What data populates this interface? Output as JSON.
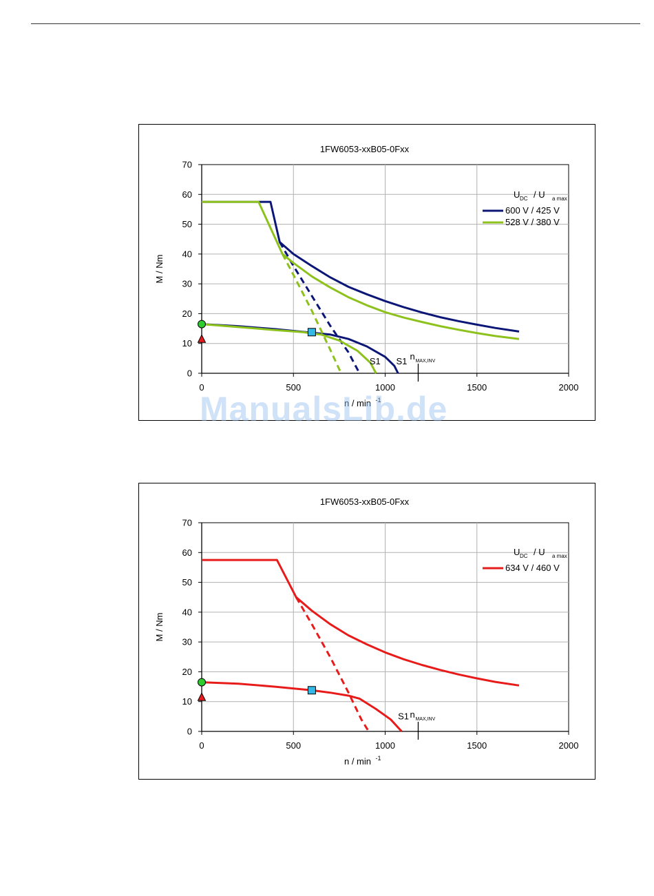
{
  "watermark": "ManualsLib.de",
  "colors": {
    "navy": "#0b1677",
    "lime": "#8dc11c",
    "red": "#e81b1b",
    "grid": "#b0b0b0",
    "marker_circle": "#2ecc2e",
    "marker_square": "#35b7e6",
    "marker_triangle": "#e81b1b"
  },
  "chart_data": [
    {
      "type": "line",
      "title": "1FW6053-xxB05-0Fxx",
      "xlabel": "n / min-1",
      "ylabel": "M / Nm",
      "xlim": [
        0,
        2000
      ],
      "ylim": [
        0,
        70
      ],
      "xticks": [
        "0",
        "500",
        "1000",
        "1500",
        "2000"
      ],
      "yticks": [
        "0",
        "10",
        "20",
        "30",
        "40",
        "50",
        "60",
        "70"
      ],
      "grid": true,
      "legend_title_main": "U",
      "legend_title_sub1": "DC",
      "legend_title_sep": "/  U",
      "legend_title_sub2": "a max",
      "legend_position": "top-right",
      "annotation_nmax_main": "n",
      "annotation_nmax_sub": "MAX,INV",
      "annotation_nmax_x": 1180,
      "markers": {
        "circle": [
          0,
          16.5
        ],
        "triangle": [
          0,
          11.5
        ],
        "square": [
          600,
          13.8
        ]
      },
      "series": [
        {
          "name": "600 V / 425 V",
          "color_key": "navy",
          "s1_label": "S1",
          "peak": [
            [
              0,
              57.5
            ],
            [
              375,
              57.5
            ],
            [
              425,
              44
            ],
            [
              500,
              40
            ],
            [
              600,
              36
            ],
            [
              700,
              32.2
            ],
            [
              800,
              29
            ],
            [
              900,
              26.5
            ],
            [
              1000,
              24.2
            ],
            [
              1100,
              22.2
            ],
            [
              1200,
              20.4
            ],
            [
              1300,
              18.8
            ],
            [
              1400,
              17.5
            ],
            [
              1500,
              16.3
            ],
            [
              1600,
              15.2
            ],
            [
              1730,
              14
            ]
          ],
          "peak_dashed": [
            [
              425,
              44
            ],
            [
              500,
              36
            ],
            [
              600,
              26
            ],
            [
              700,
              16
            ],
            [
              800,
              7
            ],
            [
              860,
              0
            ]
          ],
          "s1": [
            [
              0,
              16.5
            ],
            [
              200,
              15.8
            ],
            [
              400,
              14.8
            ],
            [
              600,
              13.6
            ],
            [
              700,
              13
            ],
            [
              800,
              11.5
            ],
            [
              900,
              9
            ],
            [
              1000,
              5.5
            ],
            [
              1050,
              2.5
            ],
            [
              1070,
              0
            ]
          ]
        },
        {
          "name": "528 V / 380 V",
          "color_key": "lime",
          "s1_label": "S1",
          "peak": [
            [
              0,
              57.5
            ],
            [
              310,
              57.5
            ],
            [
              440,
              40
            ],
            [
              500,
              37
            ],
            [
              600,
              32.5
            ],
            [
              700,
              28.8
            ],
            [
              800,
              25.5
            ],
            [
              900,
              22.8
            ],
            [
              1000,
              20.5
            ],
            [
              1100,
              18.7
            ],
            [
              1200,
              17.2
            ],
            [
              1300,
              15.8
            ],
            [
              1400,
              14.6
            ],
            [
              1500,
              13.5
            ],
            [
              1600,
              12.5
            ],
            [
              1730,
              11.5
            ]
          ],
          "peak_dashed": [
            [
              440,
              40
            ],
            [
              500,
              33
            ],
            [
              600,
              21
            ],
            [
              700,
              8
            ],
            [
              760,
              0
            ]
          ],
          "s1": [
            [
              0,
              16.5
            ],
            [
              200,
              15.5
            ],
            [
              400,
              14.5
            ],
            [
              550,
              13.8
            ],
            [
              650,
              13
            ],
            [
              750,
              11
            ],
            [
              850,
              7.5
            ],
            [
              920,
              3.5
            ],
            [
              950,
              0
            ]
          ]
        }
      ],
      "s1_label_positions": [
        [
          915,
          3
        ],
        [
          1060,
          3
        ]
      ]
    },
    {
      "type": "line",
      "title": "1FW6053-xxB05-0Fxx",
      "xlabel": "n / min-1",
      "ylabel": "M / Nm",
      "xlim": [
        0,
        2000
      ],
      "ylim": [
        0,
        70
      ],
      "xticks": [
        "0",
        "500",
        "1000",
        "1500",
        "2000"
      ],
      "yticks": [
        "0",
        "10",
        "20",
        "30",
        "40",
        "50",
        "60",
        "70"
      ],
      "grid": true,
      "legend_title_main": "U",
      "legend_title_sub1": "DC",
      "legend_title_sep": "/  U",
      "legend_title_sub2": "a max",
      "legend_position": "top-right",
      "annotation_nmax_main": "n",
      "annotation_nmax_sub": "MAX,INV",
      "annotation_nmax_x": 1180,
      "markers": {
        "circle": [
          0,
          16.5
        ],
        "triangle": [
          0,
          11.5
        ],
        "square": [
          600,
          13.8
        ]
      },
      "series": [
        {
          "name": "634 V / 460 V",
          "color_key": "red",
          "s1_label": "S1",
          "peak": [
            [
              0,
              57.5
            ],
            [
              410,
              57.5
            ],
            [
              515,
              45
            ],
            [
              600,
              40.5
            ],
            [
              700,
              36
            ],
            [
              800,
              32.2
            ],
            [
              900,
              29.2
            ],
            [
              1000,
              26.5
            ],
            [
              1100,
              24.2
            ],
            [
              1200,
              22.3
            ],
            [
              1300,
              20.6
            ],
            [
              1400,
              19.1
            ],
            [
              1500,
              17.8
            ],
            [
              1600,
              16.6
            ],
            [
              1730,
              15.4
            ]
          ],
          "peak_dashed": [
            [
              515,
              45
            ],
            [
              600,
              36
            ],
            [
              700,
              25
            ],
            [
              800,
              13
            ],
            [
              870,
              4
            ],
            [
              910,
              0
            ]
          ],
          "s1": [
            [
              0,
              16.5
            ],
            [
              200,
              16
            ],
            [
              400,
              15
            ],
            [
              600,
              13.8
            ],
            [
              700,
              13
            ],
            [
              800,
              12
            ],
            [
              860,
              11
            ],
            [
              950,
              7.5
            ],
            [
              1030,
              4
            ],
            [
              1090,
              0
            ]
          ]
        }
      ],
      "s1_label_positions": [
        [
          1070,
          4
        ]
      ]
    }
  ]
}
